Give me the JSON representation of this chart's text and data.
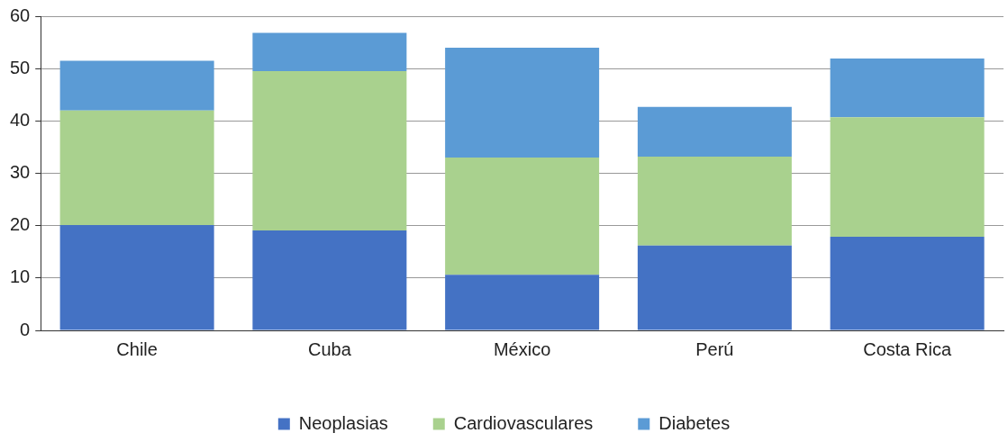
{
  "chart_data": {
    "type": "bar",
    "stacked": true,
    "categories": [
      "Chile",
      "Cuba",
      "México",
      "Perú",
      "Costa Rica"
    ],
    "series": [
      {
        "name": "Neoplasias",
        "color": "#4472c4",
        "values": [
          20.1,
          19.1,
          10.6,
          16.2,
          17.9
        ]
      },
      {
        "name": "Cardiovasculares",
        "color": "#a9d18e",
        "values": [
          21.9,
          30.4,
          22.4,
          17.0,
          22.8
        ]
      },
      {
        "name": "Diabetes",
        "color": "#5b9bd5",
        "values": [
          9.5,
          7.3,
          21.0,
          9.5,
          11.2
        ]
      }
    ],
    "ylim": [
      0,
      60
    ],
    "yticks": [
      0,
      10,
      20,
      30,
      40,
      50,
      60
    ],
    "grid": "y",
    "legend": "bottom"
  }
}
